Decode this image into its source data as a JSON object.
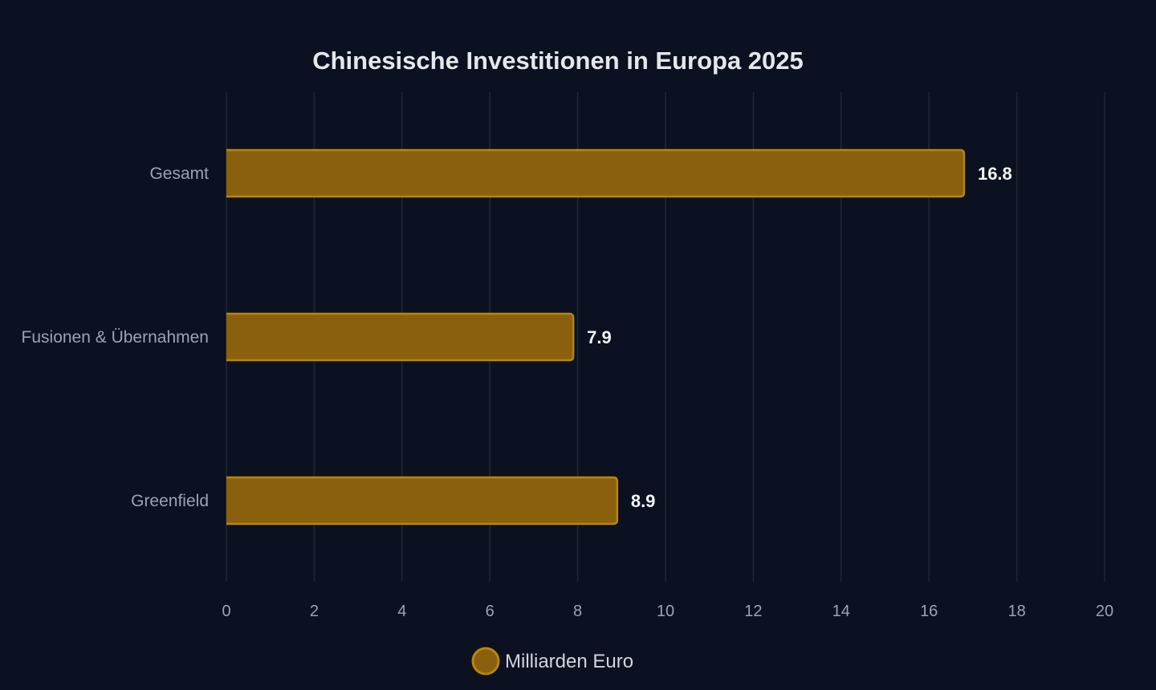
{
  "chart_data": {
    "type": "bar",
    "orientation": "horizontal",
    "title": "Chinesische Investitionen in Europa 2025",
    "categories": [
      "Gesamt",
      "Fusionen & Übernahmen",
      "Greenfield"
    ],
    "series": [
      {
        "name": "Milliarden Euro",
        "values": [
          16.8,
          7.9,
          8.9
        ],
        "color": "#b8860b"
      }
    ],
    "xlim": [
      0,
      20
    ],
    "x_ticks": [
      "0",
      "2",
      "4",
      "6",
      "8",
      "10",
      "12",
      "14",
      "16",
      "18",
      "20"
    ],
    "xlabel": "",
    "ylabel": "",
    "grid": "vertical",
    "legend": "bottom-center",
    "colors": {
      "background": "#0b1120",
      "bar_fill": "#8a600f",
      "bar_stroke": "#b8860b",
      "grid": "#1f2735"
    }
  }
}
